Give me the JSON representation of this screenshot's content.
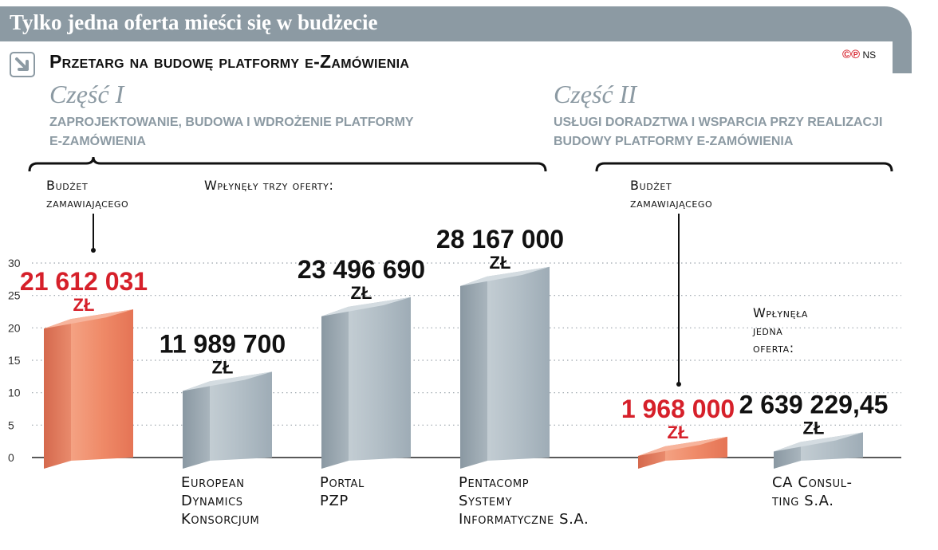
{
  "header": {
    "title": "Tylko jedna oferta mieści się w budżecie",
    "subtitle": "Przetarg na budowę platformy e-Zamówienia",
    "credit_marks": "©℗",
    "credit_initials": "NS"
  },
  "part1": {
    "title": "Część I",
    "desc_line1": "Zaprojektowanie, budowa i wdrożenie platformy",
    "desc_line2": "e-Zamówienia",
    "budget_label_1": "Budżet",
    "budget_label_2": "zamawiającego",
    "offers_note": "Wpłynęły trzy oferty:"
  },
  "part2": {
    "title": "Część II",
    "desc_line1": "Usługi doradztwa i wsparcia przy realizacji",
    "desc_line2": "budowy platformy e-Zamówienia",
    "budget_label_1": "Budżet",
    "budget_label_2": "zamawiającego",
    "offers_note_1": "Wpłynęła",
    "offers_note_2": "jedna",
    "offers_note_3": "oferta:"
  },
  "colors": {
    "budget": "#e8775a",
    "offer": "#aab7c0",
    "budget_text": "#d6202a",
    "offer_text": "#111111",
    "accent_gray": "#8c9aa3"
  },
  "chart_data": {
    "type": "bar",
    "ylim": [
      0,
      30
    ],
    "yticks": [
      0,
      5,
      10,
      15,
      20,
      25,
      30
    ],
    "unit": "zł",
    "bars": [
      {
        "group": "Część I",
        "kind": "budget",
        "value": 21612031,
        "label": "21 612 031",
        "category": []
      },
      {
        "group": "Część I",
        "kind": "offer",
        "value": 11989700,
        "label": "11 989 700",
        "category": [
          "European",
          "Dynamics",
          "Konsorcjum"
        ]
      },
      {
        "group": "Część I",
        "kind": "offer",
        "value": 23496690,
        "label": "23 496 690",
        "category": [
          "Portal",
          "PZP"
        ]
      },
      {
        "group": "Część I",
        "kind": "offer",
        "value": 28167000,
        "label": "28 167 000",
        "category": [
          "Pentacomp",
          "Systemy",
          "Informatyczne S.A."
        ]
      },
      {
        "group": "Część II",
        "kind": "budget",
        "value": 1968000,
        "label": "1 968 000",
        "category": []
      },
      {
        "group": "Część II",
        "kind": "offer",
        "value": 2639229.45,
        "label": "2 639 229,45",
        "category": [
          "CA Consul-",
          "ting S.A."
        ]
      }
    ]
  }
}
